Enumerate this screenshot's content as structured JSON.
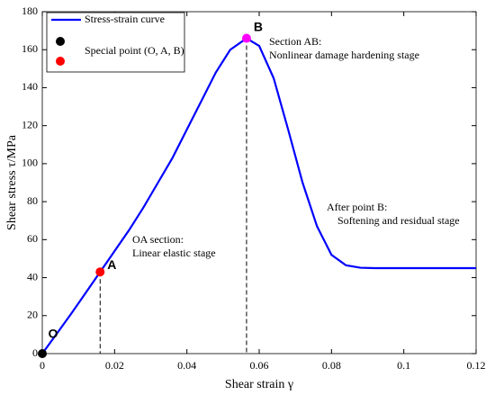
{
  "chart_data": {
    "type": "line",
    "xlabel": "Shear strain γ",
    "ylabel": "Shear stress τ/MPa",
    "xlim": [
      0,
      0.12
    ],
    "xticks": [
      0,
      0.02,
      0.04,
      0.06,
      0.08,
      0.1,
      0.12
    ],
    "ylim": [
      0,
      180
    ],
    "yticks": [
      0,
      20,
      40,
      60,
      80,
      100,
      120,
      140,
      160,
      180
    ],
    "legend": "upper left",
    "series": [
      {
        "name": "Stress-strain curve",
        "color": "#0000ff",
        "x": [
          0,
          0.004,
          0.008,
          0.012,
          0.016,
          0.02,
          0.024,
          0.028,
          0.032,
          0.036,
          0.04,
          0.044,
          0.048,
          0.052,
          0.0565,
          0.06,
          0.064,
          0.068,
          0.072,
          0.076,
          0.08,
          0.084,
          0.088,
          0.092,
          0.1,
          0.11,
          0.12
        ],
        "values": [
          0,
          10.5,
          21,
          32,
          43,
          54,
          65,
          77,
          90,
          103,
          118,
          133,
          148,
          160,
          166,
          162,
          145,
          118,
          90,
          67,
          52,
          46.5,
          45.2,
          45,
          45,
          45,
          45
        ]
      },
      {
        "name": "Special point (O, A, B)",
        "colors": [
          "#000000",
          "#ff0000",
          "#ff00ff"
        ],
        "x": [
          0,
          0.016,
          0.0565
        ],
        "values": [
          0,
          43,
          166
        ],
        "point_labels": [
          "O",
          "A",
          "B"
        ]
      }
    ],
    "annotations": [
      "Section AB:",
      "Nonlinear damage hardening stage",
      "OA section:",
      "Linear elastic stage",
      "After point B:",
      "Softening and residual stage"
    ]
  }
}
